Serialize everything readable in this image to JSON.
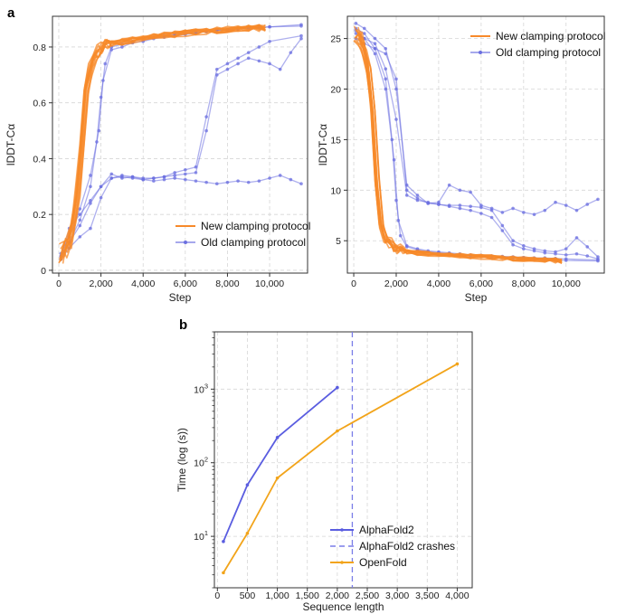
{
  "panels": {
    "a": "a",
    "b": "b"
  },
  "colors": {
    "new": "#f7892a",
    "old": "#6b6fe0",
    "alphafold": "#5a5de0",
    "openfold": "#f2a41a",
    "crash": "#7a7de8"
  },
  "chart_data": [
    {
      "type": "line",
      "title": "",
      "xlabel": "Step",
      "ylabel": "lDDT-Cα",
      "xlim": [
        -300,
        11800
      ],
      "ylim": [
        -0.01,
        0.91
      ],
      "xticks": [
        0,
        2000,
        4000,
        6000,
        8000,
        10000
      ],
      "xtick_labels": [
        "0",
        "2,000",
        "4,000",
        "6,000",
        "8,000",
        "10,000"
      ],
      "yticks": [
        0,
        0.2,
        0.4,
        0.6,
        0.8
      ],
      "ytick_labels": [
        "0",
        "0.2",
        "0.4",
        "0.6",
        "0.8"
      ],
      "grid": true,
      "legend_position": "bottom-right",
      "legend": [
        "New clamping protocol",
        "Old clamping protocol"
      ],
      "series_new_template": {
        "x": [
          100,
          300,
          500,
          700,
          900,
          1100,
          1300,
          1500,
          1700,
          1900,
          2100,
          2300,
          2500,
          3000,
          3500,
          4000,
          4500,
          5000,
          5500,
          6000,
          6500,
          7000,
          7500,
          8000,
          8500,
          9000,
          9500,
          9800
        ],
        "y": [
          0.06,
          0.08,
          0.11,
          0.17,
          0.28,
          0.45,
          0.64,
          0.72,
          0.76,
          0.785,
          0.8,
          0.807,
          0.812,
          0.818,
          0.824,
          0.83,
          0.836,
          0.841,
          0.845,
          0.849,
          0.853,
          0.857,
          0.86,
          0.863,
          0.865,
          0.867,
          0.868,
          0.869
        ]
      },
      "series_new_count": 12,
      "series_old": [
        {
          "name": "Old clamping protocol",
          "x": [
            100,
            500,
            1000,
            1500,
            1800,
            2000,
            2200,
            2500,
            3000,
            3500,
            4000,
            4500,
            5000,
            5500,
            6000,
            6500,
            7000,
            7500,
            8000,
            8500,
            9000,
            9500,
            10000,
            11500
          ],
          "y": [
            0.05,
            0.1,
            0.18,
            0.3,
            0.46,
            0.62,
            0.74,
            0.8,
            0.81,
            0.82,
            0.83,
            0.835,
            0.84,
            0.845,
            0.85,
            0.853,
            0.857,
            0.86,
            0.862,
            0.865,
            0.868,
            0.87,
            0.872,
            0.875
          ]
        },
        {
          "name": "Old clamping protocol",
          "x": [
            100,
            500,
            1000,
            1500,
            1900,
            2100,
            2500,
            3000,
            3500,
            4000,
            4500,
            5000,
            5500,
            6000,
            6500,
            7000,
            7500,
            8000,
            8500,
            9000,
            9500,
            10000,
            11500
          ],
          "y": [
            0.06,
            0.12,
            0.22,
            0.34,
            0.5,
            0.68,
            0.79,
            0.8,
            0.815,
            0.82,
            0.83,
            0.835,
            0.84,
            0.845,
            0.85,
            0.855,
            0.86,
            0.862,
            0.865,
            0.868,
            0.87,
            0.872,
            0.88
          ]
        },
        {
          "name": "Old clamping protocol",
          "x": [
            100,
            500,
            1000,
            1500,
            2000,
            2500,
            3000,
            3500,
            4000,
            4500,
            5000,
            5500,
            6000,
            6500,
            7000,
            7500,
            8000,
            8500,
            9000,
            9500,
            10000,
            11500
          ],
          "y": [
            0.04,
            0.15,
            0.2,
            0.25,
            0.3,
            0.345,
            0.33,
            0.335,
            0.325,
            0.33,
            0.335,
            0.35,
            0.36,
            0.37,
            0.55,
            0.72,
            0.74,
            0.76,
            0.78,
            0.8,
            0.82,
            0.84
          ]
        },
        {
          "name": "Old clamping protocol",
          "x": [
            100,
            500,
            1000,
            1500,
            2000,
            2500,
            3000,
            3500,
            4000,
            4500,
            5000,
            5500,
            6000,
            6500,
            7000,
            7500,
            8000,
            8500,
            9000,
            9500,
            10000,
            10500,
            11000,
            11500
          ],
          "y": [
            0.04,
            0.08,
            0.12,
            0.15,
            0.26,
            0.33,
            0.34,
            0.335,
            0.33,
            0.33,
            0.335,
            0.34,
            0.345,
            0.35,
            0.5,
            0.7,
            0.72,
            0.74,
            0.76,
            0.75,
            0.74,
            0.72,
            0.78,
            0.83
          ]
        },
        {
          "name": "Old clamping protocol",
          "x": [
            100,
            500,
            1000,
            1500,
            2000,
            2500,
            3000,
            3500,
            4000,
            4500,
            5000,
            5500,
            6000,
            6500,
            7000,
            7500,
            8000,
            8500,
            9000,
            9500,
            10000,
            10500,
            11000,
            11500
          ],
          "y": [
            0.05,
            0.1,
            0.16,
            0.24,
            0.3,
            0.33,
            0.335,
            0.33,
            0.325,
            0.32,
            0.325,
            0.33,
            0.325,
            0.32,
            0.315,
            0.31,
            0.315,
            0.32,
            0.315,
            0.32,
            0.33,
            0.34,
            0.325,
            0.31
          ]
        }
      ]
    },
    {
      "type": "line",
      "title": "",
      "xlabel": "Step",
      "ylabel": "lDDT-Cα",
      "xlim": [
        -300,
        11800
      ],
      "ylim": [
        1.8,
        27.2
      ],
      "xticks": [
        0,
        2000,
        4000,
        6000,
        8000,
        10000
      ],
      "xtick_labels": [
        "0",
        "2,000",
        "4,000",
        "6,000",
        "8,000",
        "10,000"
      ],
      "yticks": [
        5,
        10,
        15,
        20,
        25
      ],
      "ytick_labels": [
        "5",
        "10",
        "15",
        "20",
        "25"
      ],
      "grid": true,
      "legend_position": "top-right",
      "legend": [
        "New clamping protocol",
        "Old clamping protocol"
      ],
      "series_new_template": {
        "x": [
          100,
          300,
          500,
          700,
          900,
          1100,
          1300,
          1500,
          1700,
          1900,
          2100,
          2300,
          2500,
          3000,
          3500,
          4000,
          4500,
          5000,
          5500,
          6000,
          6500,
          7000,
          7500,
          8000,
          8500,
          9000,
          9500,
          9800
        ],
        "y": [
          25.5,
          25,
          24,
          22,
          18,
          11,
          6.5,
          5.2,
          4.8,
          4.4,
          4.2,
          4.0,
          3.9,
          3.8,
          3.7,
          3.6,
          3.55,
          3.5,
          3.45,
          3.4,
          3.35,
          3.3,
          3.25,
          3.2,
          3.15,
          3.1,
          3.05,
          3.0
        ]
      },
      "series_new_count": 12,
      "series_old": [
        {
          "name": "Old clamping protocol",
          "x": [
            100,
            500,
            1000,
            1500,
            1800,
            2000,
            2200,
            2500,
            3000,
            3500,
            4000,
            4500,
            5000,
            5500,
            6000,
            6500,
            7000,
            7500,
            8000,
            8500,
            9000,
            9500,
            10000,
            11500
          ],
          "y": [
            26,
            25.5,
            24,
            21,
            15,
            9,
            5.5,
            4.4,
            4.1,
            3.9,
            3.8,
            3.7,
            3.6,
            3.5,
            3.45,
            3.4,
            3.35,
            3.3,
            3.25,
            3.2,
            3.15,
            3.1,
            3.05,
            3.0
          ]
        },
        {
          "name": "Old clamping protocol",
          "x": [
            100,
            500,
            1000,
            1500,
            1900,
            2100,
            2500,
            3000,
            3500,
            4000,
            4500,
            5000,
            5500,
            6000,
            6500,
            7000,
            7500,
            8000,
            8500,
            9000,
            9500,
            10000,
            11500
          ],
          "y": [
            25.8,
            25,
            23.5,
            20,
            13,
            7,
            4.5,
            4.2,
            4.0,
            3.9,
            3.8,
            3.7,
            3.6,
            3.55,
            3.5,
            3.45,
            3.4,
            3.35,
            3.3,
            3.3,
            3.25,
            3.2,
            3.1
          ]
        },
        {
          "name": "Old clamping protocol",
          "x": [
            100,
            500,
            1000,
            1500,
            2000,
            2500,
            3000,
            3500,
            4000,
            4500,
            5000,
            5500,
            6000,
            6500,
            7000,
            7500,
            8000,
            8500,
            9000,
            9500,
            10000,
            10500,
            11000,
            11500
          ],
          "y": [
            26.5,
            26,
            25,
            24,
            20,
            10.5,
            9.5,
            8.7,
            8.8,
            10.5,
            10,
            9.8,
            8.5,
            8.2,
            7.8,
            8.2,
            7.8,
            7.6,
            8.0,
            8.8,
            8.5,
            8.0,
            8.6,
            9.1
          ]
        },
        {
          "name": "Old clamping protocol",
          "x": [
            100,
            500,
            1000,
            1500,
            2000,
            2500,
            3000,
            3500,
            4000,
            4500,
            5000,
            5500,
            6000,
            6500,
            7000,
            7500,
            8000,
            8500,
            9000,
            9500,
            10000,
            10500,
            11000,
            11500
          ],
          "y": [
            25,
            24.5,
            24,
            23.5,
            21,
            10,
            9.2,
            8.7,
            8.6,
            8.5,
            8.5,
            8.4,
            8.3,
            8.0,
            6.5,
            5.0,
            4.5,
            4.2,
            4.0,
            3.9,
            4.2,
            5.3,
            4.4,
            3.4
          ]
        },
        {
          "name": "Old clamping protocol",
          "x": [
            100,
            500,
            1000,
            1500,
            2000,
            2500,
            3000,
            3500,
            4000,
            4500,
            5000,
            5500,
            6000,
            6500,
            7000,
            7500,
            8000,
            8500,
            9000,
            9500,
            10000,
            10500,
            11000,
            11500
          ],
          "y": [
            25.5,
            25,
            24.5,
            22,
            17,
            9.5,
            9.0,
            8.8,
            8.6,
            8.4,
            8.2,
            8.0,
            7.7,
            7.3,
            6.0,
            4.6,
            4.2,
            4.0,
            3.8,
            3.7,
            3.6,
            3.7,
            3.5,
            3.2
          ]
        }
      ]
    },
    {
      "type": "line",
      "title": "",
      "xlabel": "Sequence length",
      "ylabel": "Time (log (s))",
      "yscale": "log",
      "xlim": [
        -50,
        4250
      ],
      "ylim": [
        2,
        6000
      ],
      "xticks": [
        0,
        500,
        1000,
        1500,
        2000,
        2500,
        3000,
        3500,
        4000
      ],
      "xtick_labels": [
        "0",
        "500",
        "1,000",
        "1,500",
        "2,000",
        "2,500",
        "3,000",
        "3,500",
        "4,000"
      ],
      "yticks": [
        10,
        100,
        1000
      ],
      "ytick_labels": [
        "10",
        "10",
        "10"
      ],
      "ytick_exponents": [
        "1",
        "2",
        "3"
      ],
      "grid": true,
      "legend_position": "bottom-right",
      "legend": [
        "AlphaFold2",
        "AlphaFold2 crashes",
        "OpenFold"
      ],
      "series": [
        {
          "name": "AlphaFold2",
          "x": [
            100,
            500,
            1000,
            2000
          ],
          "y": [
            8.5,
            50,
            220,
            1050
          ]
        },
        {
          "name": "OpenFold",
          "x": [
            100,
            500,
            1000,
            2000,
            4000
          ],
          "y": [
            3.2,
            11,
            62,
            270,
            2200
          ]
        }
      ],
      "crash_x": 2250
    }
  ]
}
